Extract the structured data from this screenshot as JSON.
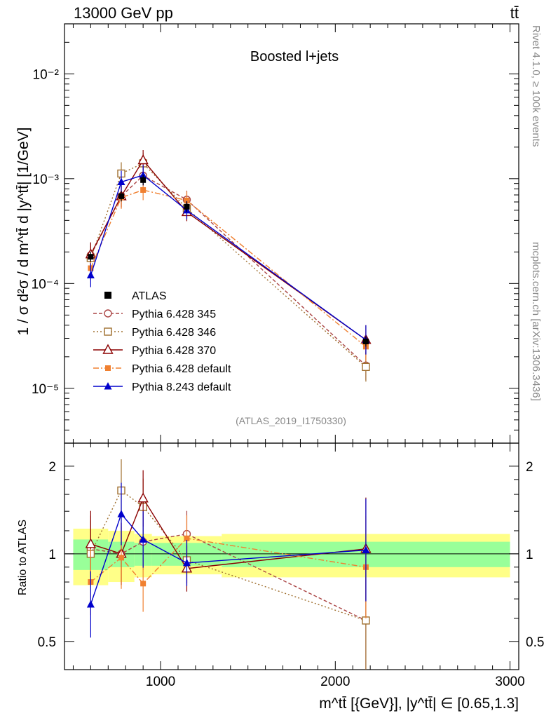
{
  "chart_data": {
    "type": "line",
    "header_left": "13000 GeV pp",
    "header_right": "tt̄",
    "title": "Boosted l+jets",
    "analysis_tag": "(ATLAS_2019_I1750330)",
    "side_label_top": "Rivet 4.1.0, ≥ 100k events",
    "side_label_bottom": "mcplots.cern.ch [arXiv:1306.3436]",
    "ylabel": "1 / σ d²σ / d m^tt̄ d |y^tt̄| [1/GeV]",
    "ratio_ylabel": "Ratio to ATLAS",
    "xlabel": "m^tt̄ [{GeV}], |y^tt̄| ∈ [0.65,1.3]",
    "xlim": [
      450,
      3050
    ],
    "ylim": [
      3e-06,
      0.03
    ],
    "ratio_ylim": [
      0.4,
      2.4
    ],
    "x_tick_labels": [
      "1000",
      "2000",
      "3000"
    ],
    "y_tick_labels": [
      "10⁻⁵",
      "10⁻⁴",
      "10⁻³",
      "10⁻²"
    ],
    "ratio_tick_labels": [
      "0.5",
      "1",
      "2"
    ],
    "x": [
      600,
      775,
      900,
      1150,
      2175
    ],
    "bins": [
      [
        500,
        700
      ],
      [
        700,
        850
      ],
      [
        850,
        950
      ],
      [
        950,
        1350
      ],
      [
        1350,
        3000
      ]
    ],
    "data": {
      "name": "ATLAS",
      "values": [
        0.00018,
        0.00068,
        0.00097,
        0.00054,
        2.8e-05
      ],
      "band_inner": [
        0.12,
        0.1,
        0.09,
        0.09,
        0.1
      ],
      "band_outer": [
        0.22,
        0.2,
        0.17,
        0.15,
        0.17
      ]
    },
    "series": [
      {
        "name": "Pythia 6.428 345",
        "color": "#aa4444",
        "dash": "5,3",
        "marker": "circle-open",
        "values": [
          0.000186,
          0.00068,
          0.00107,
          0.00063,
          1.65e-05
        ],
        "ratio": [
          1.04,
          1.0,
          1.1,
          1.17,
          0.59
        ]
      },
      {
        "name": "Pythia 6.428 346",
        "color": "#a07030",
        "dash": "2,3",
        "marker": "square-open",
        "values": [
          0.000175,
          0.00112,
          0.0014,
          0.00052,
          1.6e-05
        ],
        "ratio": [
          1.0,
          1.65,
          1.45,
          0.95,
          0.59
        ]
      },
      {
        "name": "Pythia 6.428 370",
        "color": "#8b0000",
        "dash": "",
        "marker": "triangle-open",
        "values": [
          0.00019,
          0.00068,
          0.0015,
          0.00048,
          2.9e-05
        ],
        "ratio": [
          1.08,
          1.0,
          1.55,
          0.89,
          1.04
        ]
      },
      {
        "name": "Pythia 6.428 default",
        "color": "#f08030",
        "dash": "8,3,2,3",
        "marker": "square-filled",
        "values": [
          0.00014,
          0.00066,
          0.00078,
          0.00062,
          2.5e-05
        ],
        "ratio": [
          0.8,
          0.97,
          0.79,
          1.13,
          0.9
        ]
      },
      {
        "name": "Pythia 8.243 default",
        "color": "#0000cc",
        "dash": "",
        "marker": "triangle-filled",
        "values": [
          0.00012,
          0.00093,
          0.00108,
          0.0005,
          2.9e-05
        ],
        "ratio": [
          0.67,
          1.37,
          1.12,
          0.93,
          1.03
        ]
      }
    ]
  }
}
